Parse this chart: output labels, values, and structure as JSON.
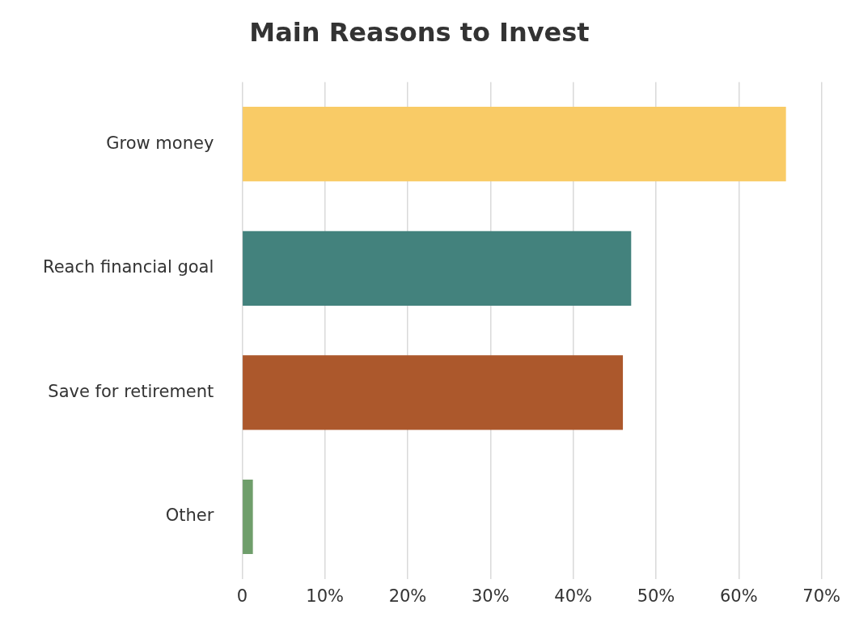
{
  "chart_data": {
    "type": "bar",
    "orientation": "horizontal",
    "title": "Main Reasons to Invest",
    "categories": [
      "Grow money",
      "Reach financial goal",
      "Save for retirement",
      "Other"
    ],
    "values": [
      65.7,
      47,
      46,
      1.3
    ],
    "colors": [
      "#f9cb66",
      "#43827d",
      "#ac582c",
      "#6f9e6b"
    ],
    "xlim": [
      0,
      70
    ],
    "xticks": [
      0,
      {
        "value": 10,
        "label": "10%"
      },
      {
        "value": 20,
        "label": "20%"
      },
      {
        "value": 30,
        "label": "30%"
      },
      {
        "value": 40,
        "label": "40%"
      },
      {
        "value": 50,
        "label": "50%"
      },
      {
        "value": 60,
        "label": "60%"
      },
      {
        "value": 70,
        "label": "70%"
      }
    ],
    "grid": "x",
    "legend": false
  }
}
